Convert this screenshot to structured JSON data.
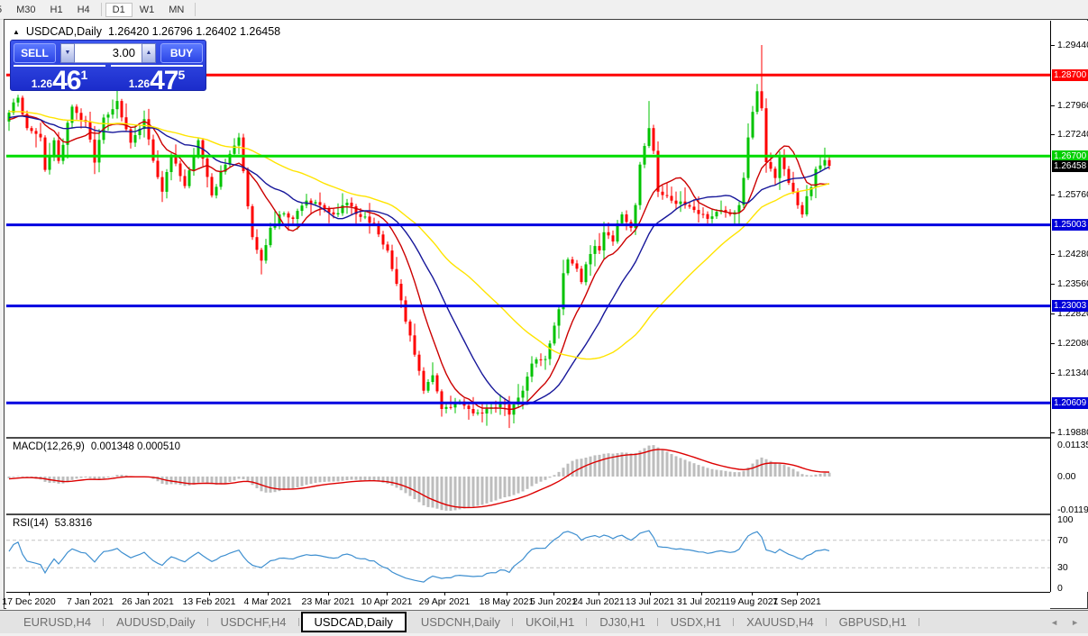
{
  "window": {
    "collapse_icon": "▲",
    "title_symbol": "USDCAD,Daily",
    "ohlc": "1.26420 1.26796 1.26402 1.26458"
  },
  "toolbar": {
    "items": [
      {
        "label": "5"
      },
      {
        "label": "M30"
      },
      {
        "label": "H1"
      },
      {
        "label": "H4"
      },
      {
        "sep": true
      },
      {
        "label": "D1",
        "active": true
      },
      {
        "label": "W1"
      },
      {
        "label": "MN"
      },
      {
        "sep": true
      }
    ]
  },
  "trade_panel": {
    "sell_label": "SELL",
    "buy_label": "BUY",
    "volume": "3.00",
    "down_icon": "▼",
    "up_icon": "▲",
    "sell_price": {
      "base": "1.26",
      "big": "46",
      "sup": "1"
    },
    "buy_price": {
      "base": "1.26",
      "big": "47",
      "sup": "5"
    }
  },
  "indicators": {
    "macd": {
      "label": "MACD(12,26,9)",
      "values": "0.001348 0.000510",
      "histogram_color": "#bdbdbd",
      "signal_color": "#dd0000",
      "scale": [
        {
          "label": "0.01135",
          "value": 0.01135
        },
        {
          "label": "0.00",
          "value": 0
        },
        {
          "label": "-0.01190",
          "value": -0.0119
        }
      ]
    },
    "rsi": {
      "label": "RSI(14)",
      "value": "53.8316",
      "line_color": "#3e8fd0",
      "level_line_color": "#c4c4c4",
      "levels": [
        70,
        30
      ],
      "scale": [
        {
          "label": "100",
          "value": 100
        },
        {
          "label": "70",
          "value": 70
        },
        {
          "label": "30",
          "value": 30
        },
        {
          "label": "0",
          "value": 0
        }
      ]
    }
  },
  "tabs": {
    "items": [
      {
        "label": "EURUSD,H4"
      },
      {
        "label": "AUDUSD,Daily"
      },
      {
        "label": "USDCHF,H4"
      },
      {
        "label": "USDCAD,Daily",
        "active": true
      },
      {
        "label": "USDCNH,Daily"
      },
      {
        "label": "UKOil,H1"
      },
      {
        "label": "DJ30,H1"
      },
      {
        "label": "USDX,H1"
      },
      {
        "label": "XAUUSD,H4"
      },
      {
        "label": "GBPUSD,H1"
      }
    ],
    "scroll_left": "◄",
    "scroll_right": "►"
  },
  "chart_data": {
    "type": "candlestick",
    "symbol": "USDCAD",
    "timeframe": "Daily",
    "last_bar": {
      "open": 1.2642,
      "high": 1.26796,
      "low": 1.26402,
      "close": 1.26458
    },
    "bid": 1.26461,
    "ask": 1.26475,
    "y_range": [
      1.1977,
      1.3004
    ],
    "candle_count": 183,
    "up_color": "#00c300",
    "down_color": "#fe0000",
    "ma": [
      {
        "period": 10,
        "color": "#cc0000"
      },
      {
        "period": 21,
        "color": "#17179a"
      },
      {
        "period": 45,
        "color": "#ffe400"
      }
    ],
    "levels": [
      {
        "price": 1.287,
        "color": "#fe0000"
      },
      {
        "price": 1.267,
        "color": "#00dc00"
      },
      {
        "price": 1.25003,
        "color": "#0000e0"
      },
      {
        "price": 1.23003,
        "color": "#0000e0"
      },
      {
        "price": 1.20609,
        "color": "#0000e0"
      }
    ],
    "y_ticks": [
      {
        "label": "1.29440",
        "price": 1.2944
      },
      {
        "label": "1.27960",
        "price": 1.2796
      },
      {
        "label": "1.27240",
        "price": 1.2724
      },
      {
        "label": "1.25760",
        "price": 1.2576
      },
      {
        "label": "1.24280",
        "price": 1.2428
      },
      {
        "label": "1.23560",
        "price": 1.2356
      },
      {
        "label": "1.22820",
        "price": 1.2282
      },
      {
        "label": "1.22080",
        "price": 1.2208
      },
      {
        "label": "1.21340",
        "price": 1.2134
      },
      {
        "label": "1.19880",
        "price": 1.1988
      }
    ],
    "y_badges": [
      {
        "label": "1.28700",
        "price": 1.287,
        "bg": "#fe0000",
        "name": "level-badge"
      },
      {
        "label": "1.26700",
        "price": 1.267,
        "bg": "#00cf00",
        "name": "level-badge"
      },
      {
        "label": "1.26458",
        "price": 1.26458,
        "bg": "#000000",
        "name": "current-price-badge"
      },
      {
        "label": "1.25003",
        "price": 1.25003,
        "bg": "#0000d9",
        "name": "level-badge"
      },
      {
        "label": "1.23003",
        "price": 1.23003,
        "bg": "#0000d9",
        "name": "level-badge"
      },
      {
        "label": "1.20609",
        "price": 1.20609,
        "bg": "#0000d9",
        "name": "level-badge"
      }
    ],
    "x_ticks": [
      {
        "label": "17 Dec 2020",
        "xf": 0.022
      },
      {
        "label": "7 Jan 2021",
        "xf": 0.08
      },
      {
        "label": "26 Jan 2021",
        "xf": 0.136
      },
      {
        "label": "13 Feb 2021",
        "xf": 0.194
      },
      {
        "label": "4 Mar 2021",
        "xf": 0.25
      },
      {
        "label": "23 Mar 2021",
        "xf": 0.308
      },
      {
        "label": "10 Apr 2021",
        "xf": 0.364
      },
      {
        "label": "29 Apr 2021",
        "xf": 0.42
      },
      {
        "label": "18 May 2021",
        "xf": 0.479
      },
      {
        "label": "5 Jun 2021",
        "xf": 0.524
      },
      {
        "label": "24 Jun 2021",
        "xf": 0.567
      },
      {
        "label": "13 Jul 2021",
        "xf": 0.617
      },
      {
        "label": "31 Jul 2021",
        "xf": 0.666
      },
      {
        "label": "19 Aug 2021",
        "xf": 0.714
      },
      {
        "label": "7 Sep 2021",
        "xf": 0.757
      }
    ],
    "close_keypoints": [
      [
        0,
        1.2777
      ],
      [
        2,
        1.2814
      ],
      [
        4,
        1.2739
      ],
      [
        7,
        1.2716
      ],
      [
        8,
        1.2636
      ],
      [
        10,
        1.2709
      ],
      [
        11,
        1.2658
      ],
      [
        14,
        1.2792
      ],
      [
        17,
        1.2754
      ],
      [
        19,
        1.2654
      ],
      [
        21,
        1.2765
      ],
      [
        24,
        1.2806
      ],
      [
        27,
        1.2703
      ],
      [
        30,
        1.2761
      ],
      [
        33,
        1.2618
      ],
      [
        34,
        1.2582
      ],
      [
        36,
        1.2672
      ],
      [
        39,
        1.2596
      ],
      [
        42,
        1.2709
      ],
      [
        45,
        1.2573
      ],
      [
        48,
        1.2649
      ],
      [
        51,
        1.2716
      ],
      [
        54,
        1.247
      ],
      [
        56,
        1.2412
      ],
      [
        58,
        1.2493
      ],
      [
        60,
        1.2526
      ],
      [
        63,
        1.2515
      ],
      [
        66,
        1.256
      ],
      [
        69,
        1.2549
      ],
      [
        72,
        1.2526
      ],
      [
        75,
        1.2555
      ],
      [
        78,
        1.252
      ],
      [
        81,
        1.2504
      ],
      [
        84,
        1.2437
      ],
      [
        87,
        1.2314
      ],
      [
        90,
        1.218
      ],
      [
        92,
        1.2091
      ],
      [
        94,
        1.2129
      ],
      [
        96,
        1.2046
      ],
      [
        99,
        1.2062
      ],
      [
        102,
        1.2046
      ],
      [
        104,
        1.2037
      ],
      [
        107,
        1.205
      ],
      [
        110,
        1.2057
      ],
      [
        111,
        1.2032
      ],
      [
        114,
        1.2091
      ],
      [
        116,
        1.2158
      ],
      [
        119,
        1.2169
      ],
      [
        122,
        1.2292
      ],
      [
        123,
        1.2381
      ],
      [
        124,
        1.2415
      ],
      [
        126,
        1.2392
      ],
      [
        127,
        1.2359
      ],
      [
        128,
        1.2403
      ],
      [
        130,
        1.2448
      ],
      [
        131,
        1.2437
      ],
      [
        132,
        1.2482
      ],
      [
        134,
        1.2459
      ],
      [
        135,
        1.2504
      ],
      [
        136,
        1.2526
      ],
      [
        138,
        1.2493
      ],
      [
        139,
        1.2549
      ],
      [
        140,
        1.2649
      ],
      [
        142,
        1.2739
      ],
      [
        143,
        1.2683
      ],
      [
        144,
        1.2582
      ],
      [
        147,
        1.256
      ],
      [
        150,
        1.2549
      ],
      [
        152,
        1.2537
      ],
      [
        155,
        1.2515
      ],
      [
        158,
        1.2537
      ],
      [
        160,
        1.2526
      ],
      [
        162,
        1.2549
      ],
      [
        163,
        1.2616
      ],
      [
        164,
        1.2716
      ],
      [
        166,
        1.283
      ],
      [
        167,
        1.2788
      ],
      [
        168,
        1.2655
      ],
      [
        170,
        1.2616
      ],
      [
        171,
        1.2672
      ],
      [
        172,
        1.2638
      ],
      [
        173,
        1.2604
      ],
      [
        174,
        1.2582
      ],
      [
        176,
        1.2526
      ],
      [
        177,
        1.2571
      ],
      [
        178,
        1.2593
      ],
      [
        179,
        1.2638
      ],
      [
        181,
        1.266
      ],
      [
        182,
        1.26458
      ]
    ],
    "wick_overrides": {
      "111": {
        "l": 1.1999
      },
      "142": {
        "h": 1.2806
      },
      "167": {
        "h": 1.2944
      }
    }
  }
}
